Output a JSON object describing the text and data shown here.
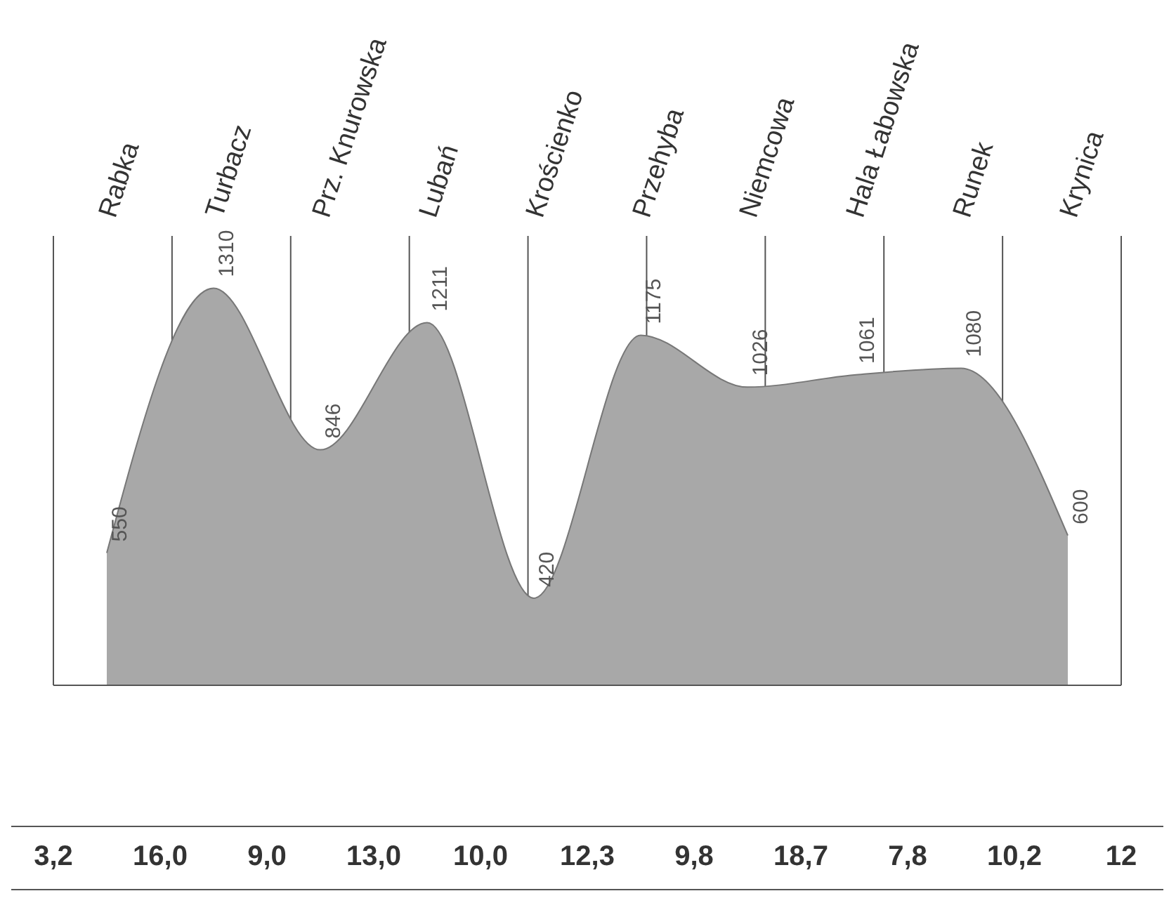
{
  "chart_data": {
    "type": "area",
    "categories": [
      "Rabka",
      "Turbacz",
      "Prz. Knurowska",
      "Lubań",
      "Krościenko",
      "Przehyba",
      "Niemcowa",
      "Hala Łabowska",
      "Runek",
      "Krynica"
    ],
    "values": [
      550,
      1310,
      846,
      1211,
      420,
      1175,
      1026,
      1061,
      1080,
      600
    ],
    "color": "#a8a8a8",
    "data_labels": true,
    "grid": "x",
    "annotations": [
      "3,2",
      "16,0",
      "9,0",
      "13,0",
      "10,0",
      "12,3",
      "9,8",
      "18,7",
      "7,8",
      "10,2",
      "12"
    ]
  }
}
